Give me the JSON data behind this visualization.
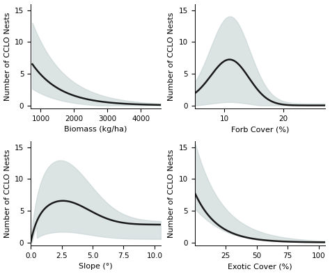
{
  "panels": [
    {
      "xlabel": "Biomass (kg/ha)",
      "ylabel": "Number of CCLO Nests",
      "xlim": [
        700,
        4600
      ],
      "ylim": [
        -0.5,
        16
      ],
      "xticks": [
        1000,
        2000,
        3000,
        4000
      ],
      "yticks": [
        0,
        5,
        10,
        15
      ],
      "x_start": 750,
      "x_end": 4600
    },
    {
      "xlabel": "Forb Cover (%)",
      "ylabel": "Number of CCLO Nests",
      "xlim": [
        5,
        27
      ],
      "ylim": [
        -0.5,
        16
      ],
      "xticks": [
        10,
        20
      ],
      "yticks": [
        0,
        5,
        10,
        15
      ],
      "x_start": 5,
      "x_end": 27
    },
    {
      "xlabel": "Slope (°)",
      "ylabel": "Number of CCLO Nests",
      "xlim": [
        0,
        10.5
      ],
      "ylim": [
        -0.5,
        16
      ],
      "xticks": [
        0.0,
        2.5,
        5.0,
        7.5,
        10.0
      ],
      "yticks": [
        0,
        5,
        10,
        15
      ],
      "x_start": 0,
      "x_end": 10.5
    },
    {
      "xlabel": "Exotic Cover (%)",
      "ylabel": "Number of CCLO Nests",
      "xlim": [
        0,
        105
      ],
      "ylim": [
        -0.5,
        16
      ],
      "xticks": [
        25,
        50,
        75,
        100
      ],
      "yticks": [
        0,
        5,
        10,
        15
      ],
      "x_start": 0,
      "x_end": 105
    }
  ],
  "line_color": "#1a1a1a",
  "fill_color": "#c8d4d4",
  "fill_alpha": 0.65,
  "line_width": 1.8,
  "background_color": "#ffffff",
  "tick_fontsize": 7.5,
  "label_fontsize": 8
}
